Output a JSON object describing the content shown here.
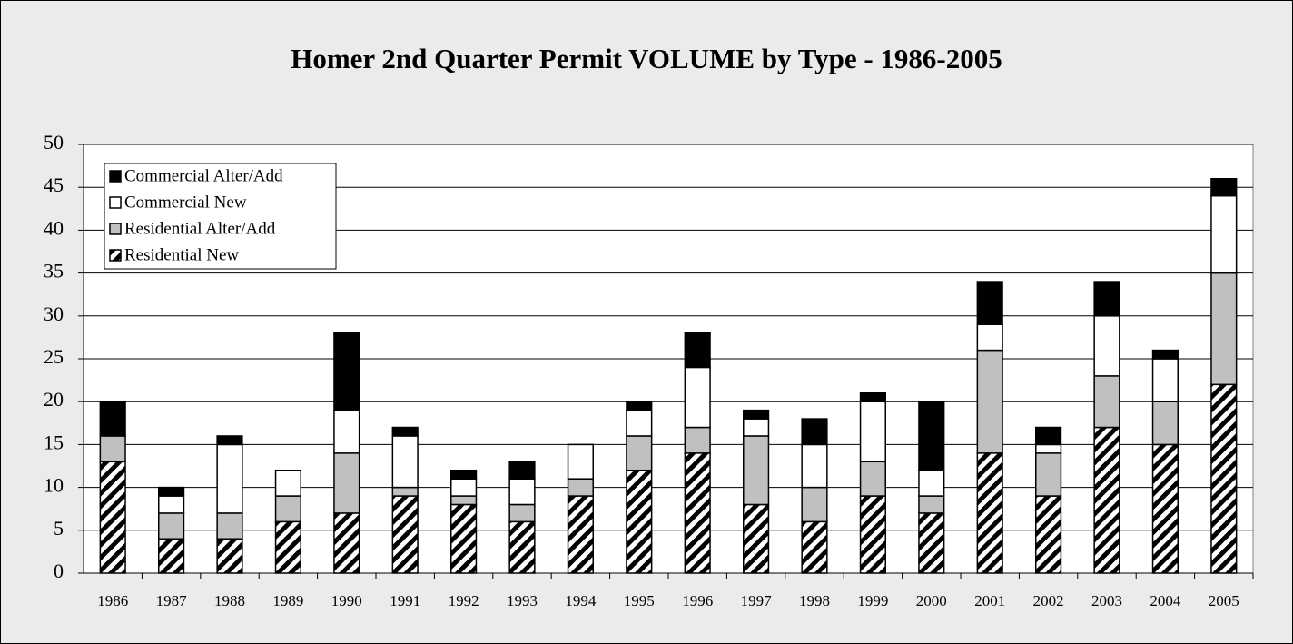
{
  "chart_data": {
    "type": "stacked_bar",
    "title": "Homer 2nd Quarter Permit VOLUME by Type - 1986-2005",
    "categories": [
      "1986",
      "1987",
      "1988",
      "1989",
      "1990",
      "1991",
      "1992",
      "1993",
      "1994",
      "1995",
      "1996",
      "1997",
      "1998",
      "1999",
      "2000",
      "2001",
      "2002",
      "2003",
      "2004",
      "2005"
    ],
    "series": [
      {
        "name": "Residential New",
        "color": "#ffffff",
        "hatch": true,
        "values": [
          13,
          4,
          4,
          6,
          7,
          9,
          8,
          6,
          9,
          12,
          14,
          8,
          6,
          9,
          7,
          14,
          9,
          17,
          15,
          22
        ]
      },
      {
        "name": "Residential Alter/Add",
        "color": "#c0c0c0",
        "values": [
          3,
          3,
          3,
          3,
          7,
          1,
          1,
          2,
          2,
          4,
          3,
          8,
          4,
          4,
          2,
          12,
          5,
          6,
          5,
          13
        ]
      },
      {
        "name": "Commercial New",
        "color": "#ffffff",
        "values": [
          0,
          2,
          8,
          3,
          5,
          6,
          2,
          3,
          4,
          3,
          7,
          2,
          5,
          7,
          3,
          3,
          1,
          7,
          5,
          9
        ]
      },
      {
        "name": "Commercial Alter/Add",
        "color": "#000000",
        "values": [
          4,
          1,
          1,
          0,
          9,
          1,
          1,
          2,
          0,
          1,
          4,
          1,
          3,
          1,
          8,
          5,
          2,
          4,
          1,
          2
        ]
      }
    ],
    "ylim": [
      0,
      50
    ],
    "yticks": [
      0,
      5,
      10,
      15,
      20,
      25,
      30,
      35,
      40,
      45,
      50
    ],
    "grid": true,
    "legend": "upper left"
  }
}
